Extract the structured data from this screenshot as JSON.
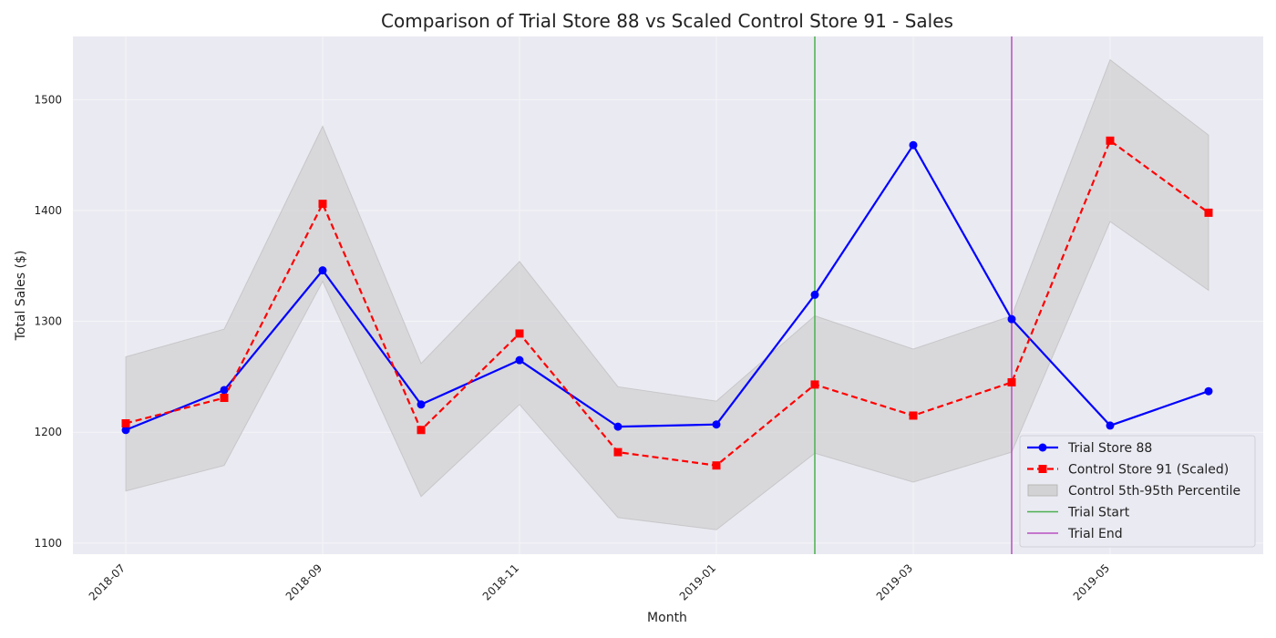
{
  "chart_data": {
    "type": "line",
    "title": "Comparison of Trial Store 88 vs Scaled Control Store 91 - Sales",
    "xlabel": "Month",
    "ylabel": "Total Sales ($)",
    "x": [
      "2018-07",
      "2018-08",
      "2018-09",
      "2018-10",
      "2018-11",
      "2018-12",
      "2019-01",
      "2019-02",
      "2019-03",
      "2019-04",
      "2019-05",
      "2019-06"
    ],
    "x_tick_labels": [
      "2018-07",
      "2018-09",
      "2018-11",
      "2019-01",
      "2019-03",
      "2019-05"
    ],
    "ylim": [
      1090,
      1557
    ],
    "y_ticks": [
      1100,
      1200,
      1300,
      1400,
      1500
    ],
    "grid": true,
    "legend_position": "bottom-right",
    "series": [
      {
        "name": "Trial Store 88",
        "color": "#0000ff",
        "style": "solid",
        "marker": "circle",
        "values": [
          1202,
          1238,
          1346,
          1225,
          1265,
          1205,
          1207,
          1324,
          1459,
          1302,
          1206,
          1237
        ]
      },
      {
        "name": "Control Store 91 (Scaled)",
        "color": "#ff0000",
        "style": "dashed",
        "marker": "square",
        "values": [
          1208,
          1231,
          1406,
          1202,
          1289,
          1182,
          1170,
          1243,
          1215,
          1245,
          1463,
          1398
        ]
      }
    ],
    "band": {
      "name": "Control 5th-95th Percentile",
      "color": "#c8c8c8",
      "lower": [
        1147,
        1170,
        1336,
        1142,
        1225,
        1123,
        1112,
        1181,
        1155,
        1182,
        1390,
        1328
      ],
      "upper": [
        1268,
        1293,
        1476,
        1262,
        1354,
        1241,
        1228,
        1305,
        1275,
        1305,
        1536,
        1468
      ]
    },
    "vlines": [
      {
        "name": "Trial Start",
        "x": "2019-02",
        "color": "#4caf50"
      },
      {
        "name": "Trial End",
        "x": "2019-04",
        "color": "#b84fbf"
      }
    ]
  }
}
